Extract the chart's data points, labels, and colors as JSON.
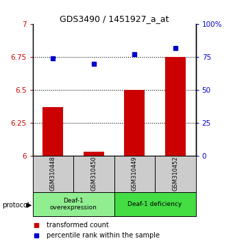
{
  "title": "GDS3490 / 1451927_a_at",
  "samples": [
    "GSM310448",
    "GSM310450",
    "GSM310449",
    "GSM310452"
  ],
  "transformed_counts": [
    6.37,
    6.03,
    6.5,
    6.75
  ],
  "percentile_ranks": [
    74,
    70,
    77,
    82
  ],
  "ylim_left": [
    6.0,
    7.0
  ],
  "ylim_right": [
    0,
    100
  ],
  "yticks_left": [
    6.0,
    6.25,
    6.5,
    6.75,
    7.0
  ],
  "yticks_right": [
    0,
    25,
    50,
    75,
    100
  ],
  "ytick_labels_left": [
    "6",
    "6.25",
    "6.5",
    "6.75",
    "7"
  ],
  "ytick_labels_right": [
    "0",
    "25",
    "50",
    "75",
    "100%"
  ],
  "bar_color": "#cc0000",
  "dot_color": "#0000cc",
  "gridline_values": [
    6.25,
    6.5,
    6.75
  ],
  "groups": [
    {
      "label": "Deaf-1\noverexpression",
      "color": "#90ee90"
    },
    {
      "label": "Deaf-1 deficiency",
      "color": "#44dd44"
    }
  ],
  "legend_bar_label": "transformed count",
  "legend_dot_label": "percentile rank within the sample",
  "protocol_label": "protocol",
  "sample_box_color": "#cccccc",
  "bar_width": 0.5,
  "base_value": 6.0
}
